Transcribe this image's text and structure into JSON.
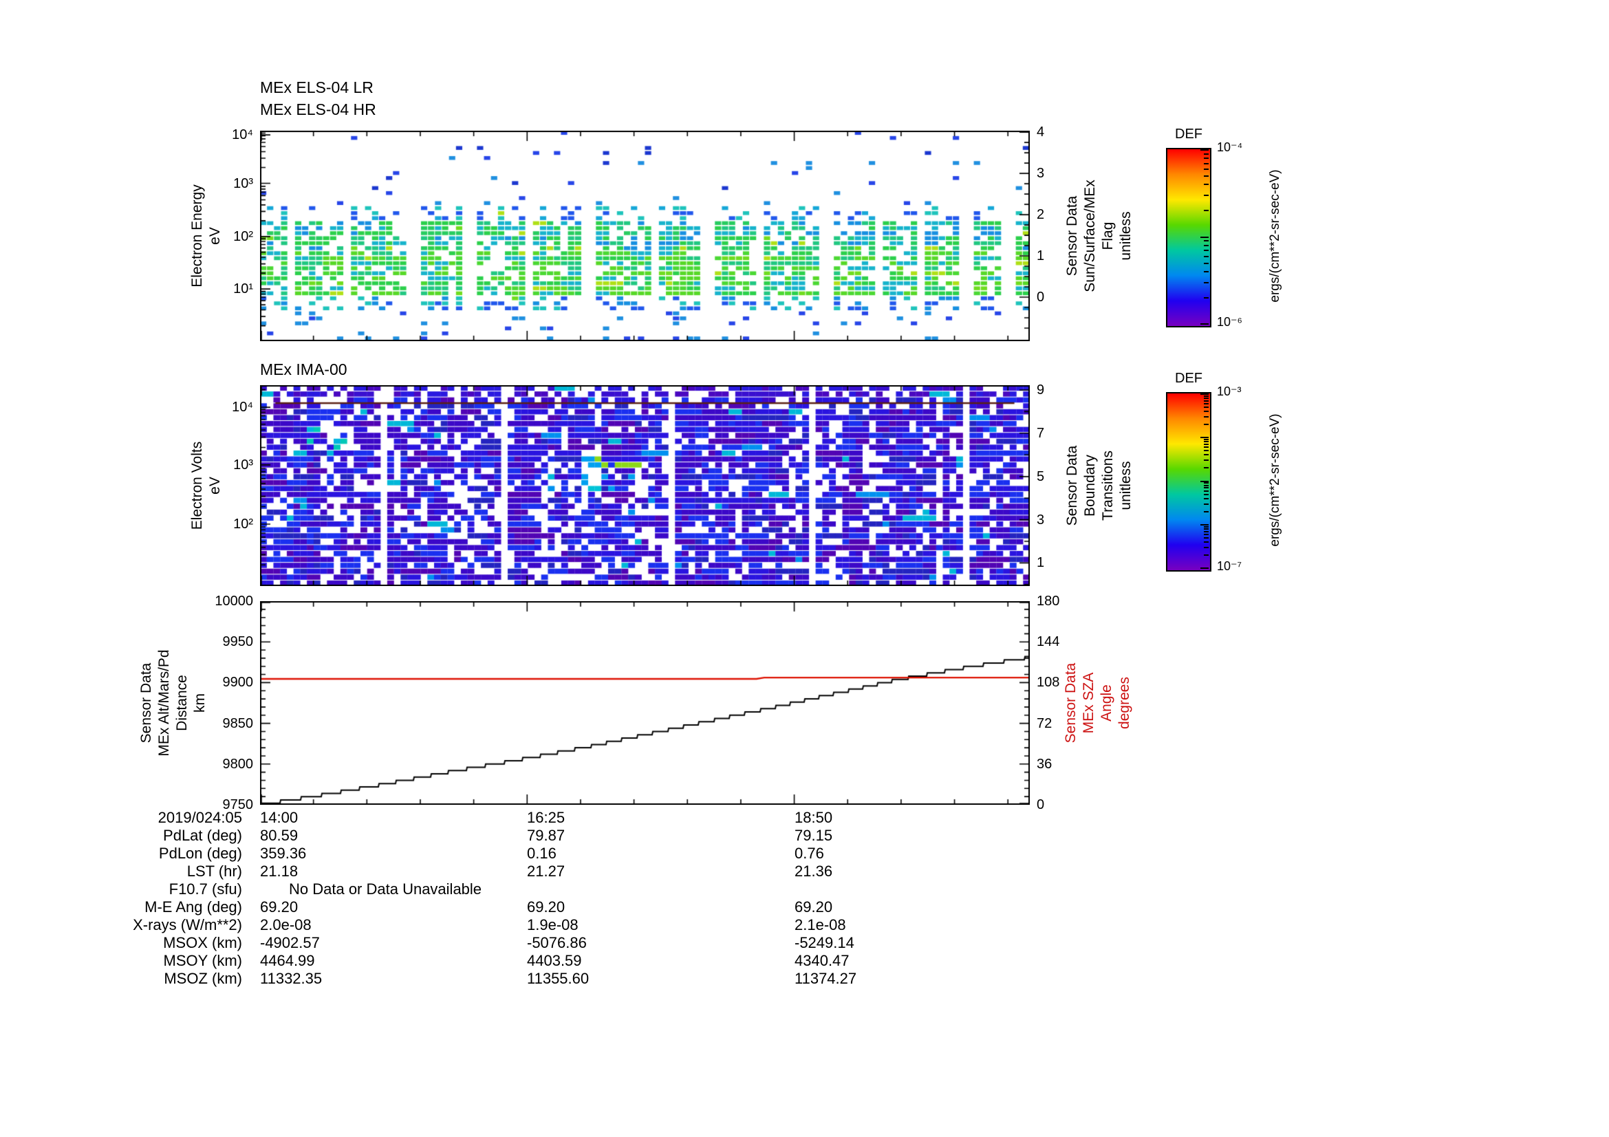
{
  "chart_data": [
    {
      "type": "heatmap",
      "titles": [
        "MEx ELS-04 LR",
        "MEx ELS-04 HR"
      ],
      "ylabel": "Electron Energy\neV",
      "yscale": "log",
      "ytick_labels": [
        "10⁴",
        "10³",
        "10²",
        "10¹"
      ],
      "right_axis": {
        "label": "Sensor Data\nSun/Surface/MEx\nFlag\nunitless",
        "tick_labels": [
          "4",
          "3",
          "2",
          "1",
          "0"
        ]
      },
      "x_tick_labels": [
        "14:00",
        "16:25",
        "18:50"
      ],
      "value_units": "ergs/(cm**2-sr-sec-eV)",
      "value_range": [
        "10⁻⁶",
        "10⁻⁴"
      ],
      "description": "ELS electron energy spectrogram: dense cyan/green flux band between ~10 and ~100 eV with periodic vertical data gaps; sparse blue flux points up to 10 keV",
      "axes": {
        "y_major": [
          0.02,
          0.25,
          0.503,
          0.752
        ],
        "y_decade": 0.25,
        "right_major": [
          0.007,
          0.203,
          0.399,
          0.595,
          0.791
        ],
        "right_minor_div": 4,
        "x_major": [
          0,
          0.347,
          0.694
        ],
        "x_minor_step": 0.0694
      },
      "texture": {
        "seed": 42,
        "cols": 110,
        "rows": 42,
        "run": 0.5,
        "fw": 0.9,
        "fh": 0.76,
        "gaps": {
          "start": 4,
          "min": 6,
          "var": 5,
          "wide": 0.35
        },
        "bands": [
          {
            "y0": 0.0,
            "y1": 0.1,
            "p": 0.035,
            "palette": [
              "#2846e8",
              "#1c38d0"
            ]
          },
          {
            "y0": 0.1,
            "y1": 0.36,
            "p": 0.05,
            "palette": [
              "#2846e8",
              "#1c38d0",
              "#2090e0"
            ]
          },
          {
            "y0": 0.36,
            "y1": 0.44,
            "p": 0.3,
            "palette": [
              "#2258ec",
              "#18a8d8",
              "#20c4bc"
            ]
          },
          {
            "y0": 0.44,
            "y1": 0.58,
            "p": 0.85,
            "palette": [
              "#18b4cc",
              "#22c882",
              "#2cd04c",
              "#1890e0",
              "#28cc60"
            ]
          },
          {
            "y0": 0.58,
            "y1": 0.78,
            "p": 0.92,
            "palette": [
              "#2cd04c",
              "#4cd834",
              "#22c882",
              "#18b4cc",
              "#58d828"
            ]
          },
          {
            "y0": 0.78,
            "y1": 0.86,
            "p": 0.38,
            "palette": [
              "#1890e0",
              "#20c4bc",
              "#2258ec"
            ]
          },
          {
            "y0": 0.86,
            "y1": 1.0,
            "p": 0.12,
            "palette": [
              "#2846e8",
              "#2090e0"
            ]
          }
        ],
        "hotspots": [
          {
            "x0": 0,
            "x1": 1,
            "y0": 0.38,
            "y1": 0.82,
            "p": 0.05,
            "palette": [
              "#b0e018",
              "#70dc20"
            ]
          }
        ]
      }
    },
    {
      "type": "heatmap",
      "title": "MEx IMA-00",
      "ylabel": "Electron Volts\neV",
      "yscale": "log",
      "ytick_labels": [
        "10⁴",
        "10³",
        "10²"
      ],
      "right_axis": {
        "label": "Sensor Data\nBoundary\nTransitions\nunitless",
        "tick_labels": [
          "9",
          "7",
          "5",
          "3",
          "1"
        ]
      },
      "x_tick_labels": [
        "14:00",
        "16:25",
        "18:50"
      ],
      "value_units": "ergs/(cm**2-sr-sec-eV)",
      "value_range": [
        "10⁻⁷",
        "10⁻³"
      ],
      "description": "IMA ion spectrogram: dense blue/purple mosaic over full energy range with scattered white data holes and a cyan/green enhancement near mid-interval",
      "axes": {
        "y_major": [
          0.11,
          0.397,
          0.692
        ],
        "y_decade": 0.29,
        "right_major": [
          0.024,
          0.239,
          0.455,
          0.67,
          0.885
        ],
        "right_minor_div": 2,
        "x_major": [
          0,
          0.347,
          0.694
        ],
        "x_minor_step": 0.0694
      },
      "texture": {
        "seed": 1337,
        "cols": 115,
        "rows": 34,
        "run": 0.55,
        "fw": 1.02,
        "fh": 0.88,
        "gaps": {
          "start": 18,
          "min": 16,
          "var": 14,
          "wide": 0.1
        },
        "topline": {
          "y": 0.085,
          "color": "#5a2014"
        },
        "bands": [
          {
            "y0": 0.0,
            "y1": 0.06,
            "p": 0.72,
            "palette": [
              "#3a10d0",
              "#2a1ae0",
              "#4a08c0"
            ]
          },
          {
            "y0": 0.06,
            "y1": 1.0,
            "p": 0.87,
            "palette": [
              "#2a14e0",
              "#3c08c8",
              "#1a30f0",
              "#5204b4",
              "#2a14e0",
              "#1a30f0",
              "#3c08c8",
              "#2424c0"
            ]
          }
        ],
        "hotspots": [
          {
            "x0": 0.4,
            "x1": 0.5,
            "y0": 0.36,
            "y1": 0.52,
            "p": 0.5,
            "palette": [
              "#00c4d8",
              "#38d458",
              "#8cd818",
              "#00a0f0"
            ]
          },
          {
            "x0": 0.06,
            "x1": 0.11,
            "y0": 0.22,
            "y1": 0.34,
            "p": 0.4,
            "palette": [
              "#00b4e0",
              "#00c8b8"
            ]
          },
          {
            "x0": 0.0,
            "x1": 1.0,
            "y0": 0.0,
            "y1": 1.0,
            "p": 0.035,
            "palette": [
              "#0090f0",
              "#00b8d8"
            ]
          }
        ]
      }
    },
    {
      "type": "line",
      "left_axis": {
        "label": "Sensor Data\nMEx Alt/Mars/Pd\nDistance\nkm",
        "tick_labels": [
          "10000",
          "9950",
          "9900",
          "9850",
          "9800",
          "9750"
        ],
        "range": [
          9750,
          10000
        ]
      },
      "right_axis": {
        "label": "Sensor Data\nMEx SZA\nAngle\ndegrees",
        "tick_labels": [
          "180",
          "144",
          "108",
          "72",
          "36",
          "0"
        ],
        "range": [
          0,
          180
        ],
        "color": "#cc1111"
      },
      "x_tick_labels": [
        "14:00",
        "16:25",
        "18:50"
      ],
      "axes": {
        "y_major": [
          0,
          0.2,
          0.4,
          0.6,
          0.8,
          1
        ],
        "y_minor_step": 0.04,
        "x_major": [
          0,
          0.347,
          0.694
        ],
        "x_minor_step": 0.0694
      },
      "series": [
        {
          "name": "MEx Alt/Mars/Pd Distance (km)",
          "axis": "left",
          "color": "#000000",
          "style": "staircase",
          "step": 4,
          "points": [
            [
              0,
              9752
            ],
            [
              0.08,
              9764
            ],
            [
              0.16,
              9777
            ],
            [
              0.25,
              9793
            ],
            [
              0.33,
              9806
            ],
            [
              0.42,
              9822
            ],
            [
              0.5,
              9838
            ],
            [
              0.58,
              9854
            ],
            [
              0.67,
              9872
            ],
            [
              0.75,
              9889
            ],
            [
              0.83,
              9906
            ],
            [
              0.92,
              9921
            ],
            [
              1,
              9933
            ]
          ]
        },
        {
          "name": "MEx SZA Angle (deg)",
          "axis": "right",
          "color": "#dd1100",
          "style": "line",
          "points": [
            [
              0,
              111.3
            ],
            [
              0.645,
              111.3
            ],
            [
              0.655,
              112.4
            ],
            [
              1,
              112.4
            ]
          ]
        }
      ]
    }
  ],
  "colorbars": [
    {
      "title": "DEF",
      "top_label": "10⁻⁴",
      "bottom_label": "10⁻⁶",
      "units": "ergs/(cm**2-sr-sec-eV)",
      "major_fracs": [
        0,
        0.5,
        1
      ],
      "colors": [
        "#ff0000",
        "#ff8800",
        "#ffe800",
        "#58d800",
        "#00c8a0",
        "#0088f0",
        "#2000f0",
        "#7800c0"
      ]
    },
    {
      "title": "DEF",
      "top_label": "10⁻³",
      "bottom_label": "10⁻⁷",
      "units": "ergs/(cm**2-sr-sec-eV)",
      "major_fracs": [
        0,
        0.25,
        0.5,
        0.75,
        1
      ],
      "colors": [
        "#ff0000",
        "#ff8800",
        "#ffe800",
        "#58d800",
        "#00c8a0",
        "#0088f0",
        "#2000f0",
        "#7800c0"
      ]
    }
  ],
  "table": {
    "row_labels": [
      "2019/024:05",
      "PdLat (deg)",
      "PdLon (deg)",
      "LST (hr)",
      "F10.7 (sfu)",
      "M-E Ang (deg)",
      "X-rays (W/m**2)",
      "MSOX (km)",
      "MSOY (km)",
      "MSOZ (km)"
    ],
    "rows": [
      [
        "14:00",
        "16:25",
        "18:50"
      ],
      [
        "80.59",
        "79.87",
        "79.15"
      ],
      [
        "359.36",
        "0.16",
        "0.76"
      ],
      [
        "21.18",
        "21.27",
        "21.36"
      ],
      [
        "No Data or Data Unavailable"
      ],
      [
        "69.20",
        "69.20",
        "69.20"
      ],
      [
        "2.0e-08",
        "1.9e-08",
        "2.1e-08"
      ],
      [
        "-4902.57",
        "-5076.86",
        "-5249.14"
      ],
      [
        "4464.99",
        "4403.59",
        "4340.47"
      ],
      [
        "11332.35",
        "11355.60",
        "11374.27"
      ]
    ],
    "no_data_row_index": 4
  }
}
